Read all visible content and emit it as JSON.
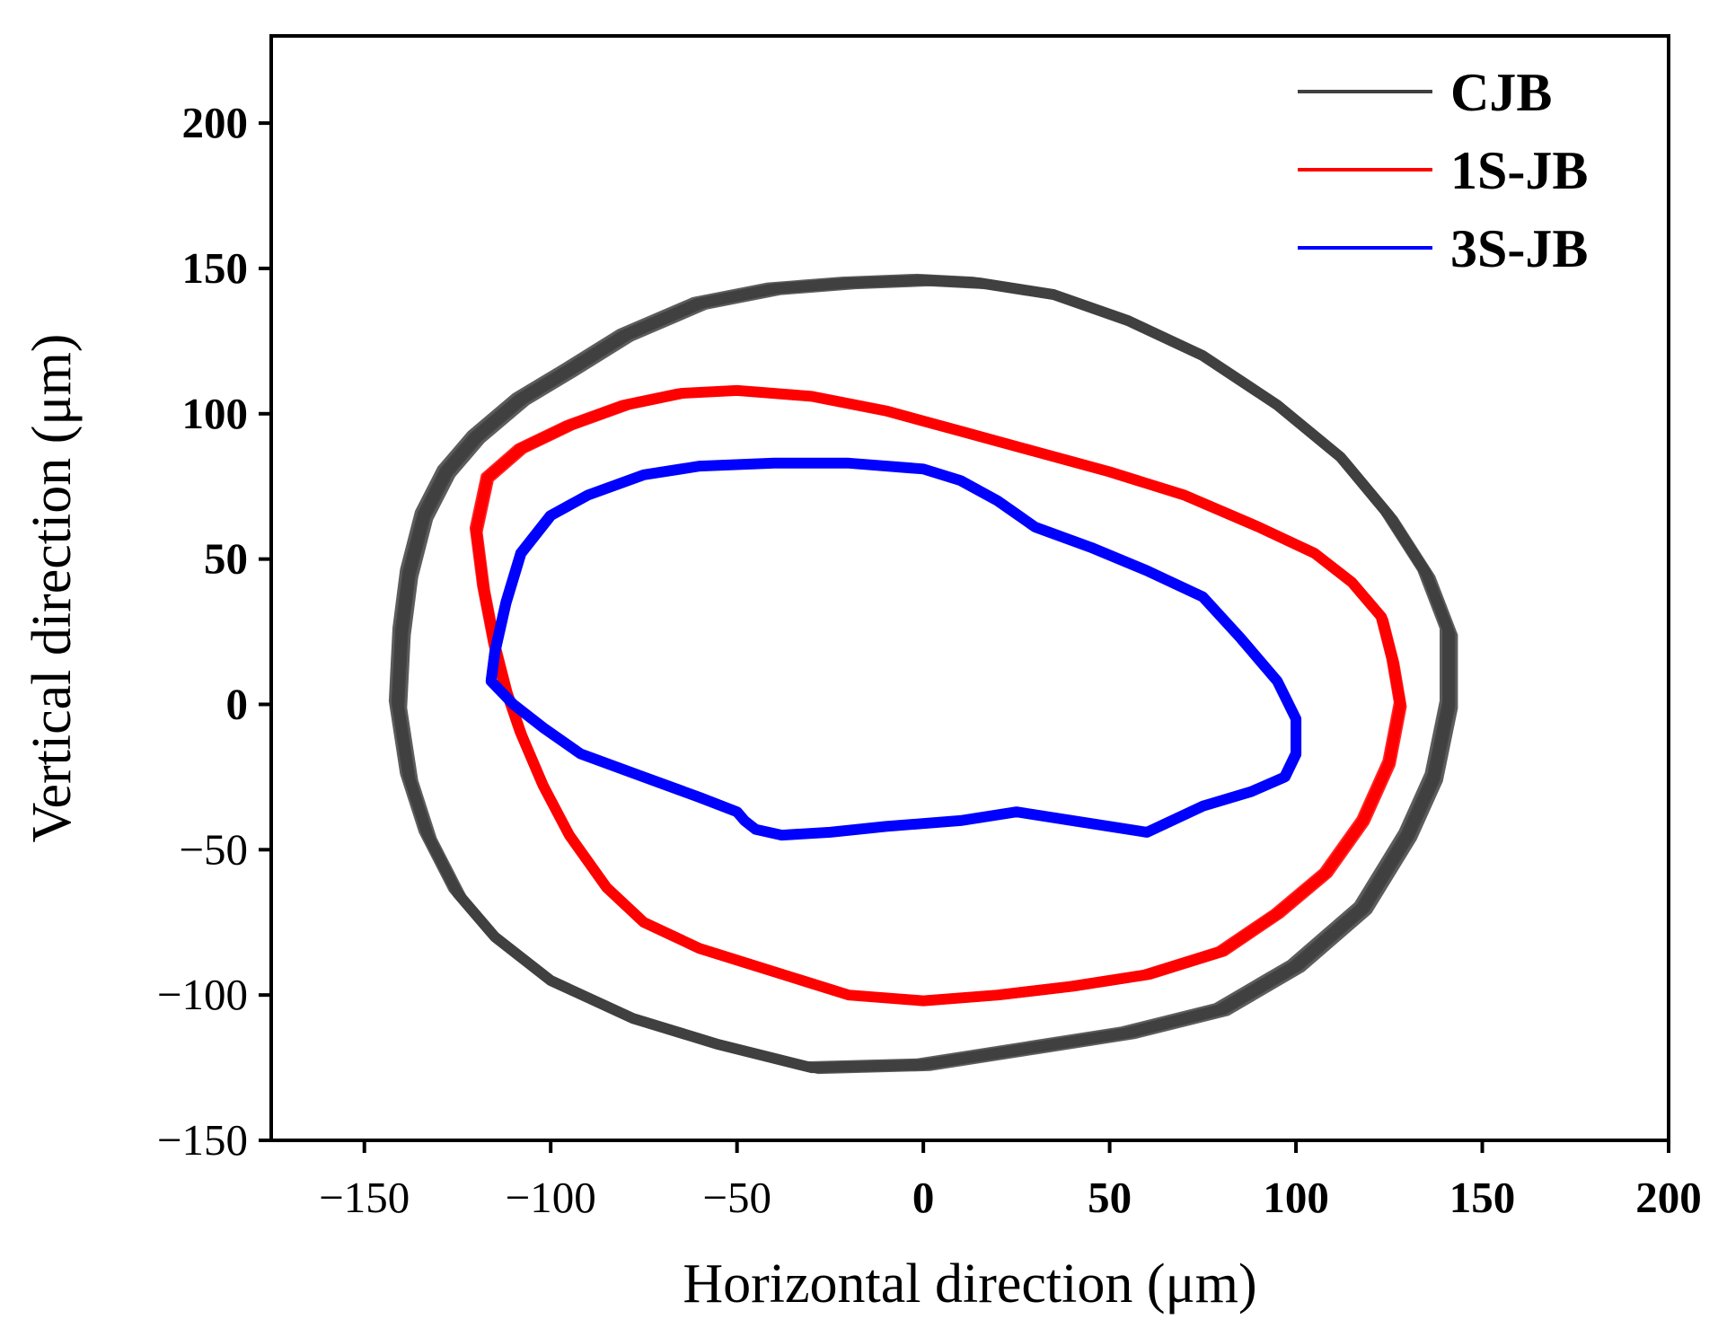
{
  "chart_data": {
    "type": "line",
    "title": "",
    "xlabel": "Horizontal direction (μm)",
    "ylabel": "Vertical direction (μm)",
    "xlim": [
      -175,
      200
    ],
    "ylim": [
      -150,
      230
    ],
    "xticks": [
      -150,
      -100,
      -50,
      0,
      50,
      100,
      150,
      200
    ],
    "yticks": [
      -150,
      -100,
      -50,
      0,
      50,
      100,
      150,
      200
    ],
    "xtick_labels": [
      "−150",
      "−100",
      "−50",
      "0",
      "50",
      "100",
      "150",
      "200"
    ],
    "ytick_labels": [
      "−150",
      "−100",
      "−50",
      "0",
      "50",
      "100",
      "150",
      "200"
    ],
    "grid": false,
    "legend_position": "top-right",
    "series": [
      {
        "name": "CJB",
        "color": "#404040",
        "band_width": 6,
        "points": [
          [
            -140,
            25
          ],
          [
            -138,
            45
          ],
          [
            -134,
            65
          ],
          [
            -128,
            80
          ],
          [
            -120,
            92
          ],
          [
            -108,
            105
          ],
          [
            -95,
            115
          ],
          [
            -80,
            127
          ],
          [
            -60,
            138
          ],
          [
            -40,
            143
          ],
          [
            -20,
            145
          ],
          [
            0,
            146
          ],
          [
            15,
            145
          ],
          [
            35,
            141
          ],
          [
            55,
            132
          ],
          [
            75,
            120
          ],
          [
            95,
            103
          ],
          [
            112,
            85
          ],
          [
            125,
            65
          ],
          [
            135,
            45
          ],
          [
            141,
            25
          ],
          [
            141,
            0
          ],
          [
            137,
            -25
          ],
          [
            130,
            -45
          ],
          [
            118,
            -70
          ],
          [
            100,
            -90
          ],
          [
            80,
            -105
          ],
          [
            55,
            -113
          ],
          [
            30,
            -118
          ],
          [
            0,
            -124
          ],
          [
            -30,
            -125
          ],
          [
            -55,
            -117
          ],
          [
            -78,
            -108
          ],
          [
            -100,
            -95
          ],
          [
            -115,
            -80
          ],
          [
            -125,
            -65
          ],
          [
            -133,
            -45
          ],
          [
            -138,
            -25
          ],
          [
            -141,
            0
          ]
        ]
      },
      {
        "name": "1S-JB",
        "color": "#ff0000",
        "band_width": 4,
        "points": [
          [
            -115,
            20
          ],
          [
            -118,
            40
          ],
          [
            -120,
            60
          ],
          [
            -117,
            78
          ],
          [
            -108,
            88
          ],
          [
            -95,
            96
          ],
          [
            -80,
            103
          ],
          [
            -65,
            107
          ],
          [
            -50,
            108
          ],
          [
            -30,
            106
          ],
          [
            -10,
            101
          ],
          [
            10,
            94
          ],
          [
            30,
            87
          ],
          [
            50,
            80
          ],
          [
            70,
            72
          ],
          [
            90,
            61
          ],
          [
            105,
            52
          ],
          [
            115,
            42
          ],
          [
            123,
            30
          ],
          [
            126,
            15
          ],
          [
            128,
            0
          ],
          [
            125,
            -20
          ],
          [
            118,
            -40
          ],
          [
            108,
            -58
          ],
          [
            95,
            -72
          ],
          [
            80,
            -85
          ],
          [
            60,
            -93
          ],
          [
            40,
            -97
          ],
          [
            20,
            -100
          ],
          [
            0,
            -102
          ],
          [
            -20,
            -100
          ],
          [
            -40,
            -92
          ],
          [
            -60,
            -84
          ],
          [
            -75,
            -75
          ],
          [
            -85,
            -63
          ],
          [
            -95,
            -45
          ],
          [
            -102,
            -28
          ],
          [
            -108,
            -10
          ],
          [
            -112,
            5
          ]
        ]
      },
      {
        "name": "3S-JB",
        "color": "#0000ff",
        "band_width": 3,
        "points": [
          [
            -115,
            18
          ],
          [
            -112,
            35
          ],
          [
            -108,
            52
          ],
          [
            -100,
            65
          ],
          [
            -90,
            72
          ],
          [
            -75,
            79
          ],
          [
            -60,
            82
          ],
          [
            -40,
            83
          ],
          [
            -20,
            83
          ],
          [
            0,
            81
          ],
          [
            10,
            77
          ],
          [
            20,
            70
          ],
          [
            30,
            61
          ],
          [
            45,
            54
          ],
          [
            60,
            46
          ],
          [
            75,
            37
          ],
          [
            85,
            23
          ],
          [
            95,
            8
          ],
          [
            100,
            -5
          ],
          [
            100,
            -17
          ],
          [
            97,
            -25
          ],
          [
            88,
            -30
          ],
          [
            75,
            -35
          ],
          [
            60,
            -44
          ],
          [
            45,
            -41
          ],
          [
            25,
            -37
          ],
          [
            10,
            -40
          ],
          [
            -10,
            -42
          ],
          [
            -25,
            -44
          ],
          [
            -38,
            -45
          ],
          [
            -45,
            -43
          ],
          [
            -48,
            -40
          ],
          [
            -50,
            -37
          ],
          [
            -60,
            -32
          ],
          [
            -75,
            -25
          ],
          [
            -92,
            -17
          ],
          [
            -102,
            -8
          ],
          [
            -110,
            0
          ],
          [
            -116,
            8
          ]
        ]
      }
    ]
  }
}
